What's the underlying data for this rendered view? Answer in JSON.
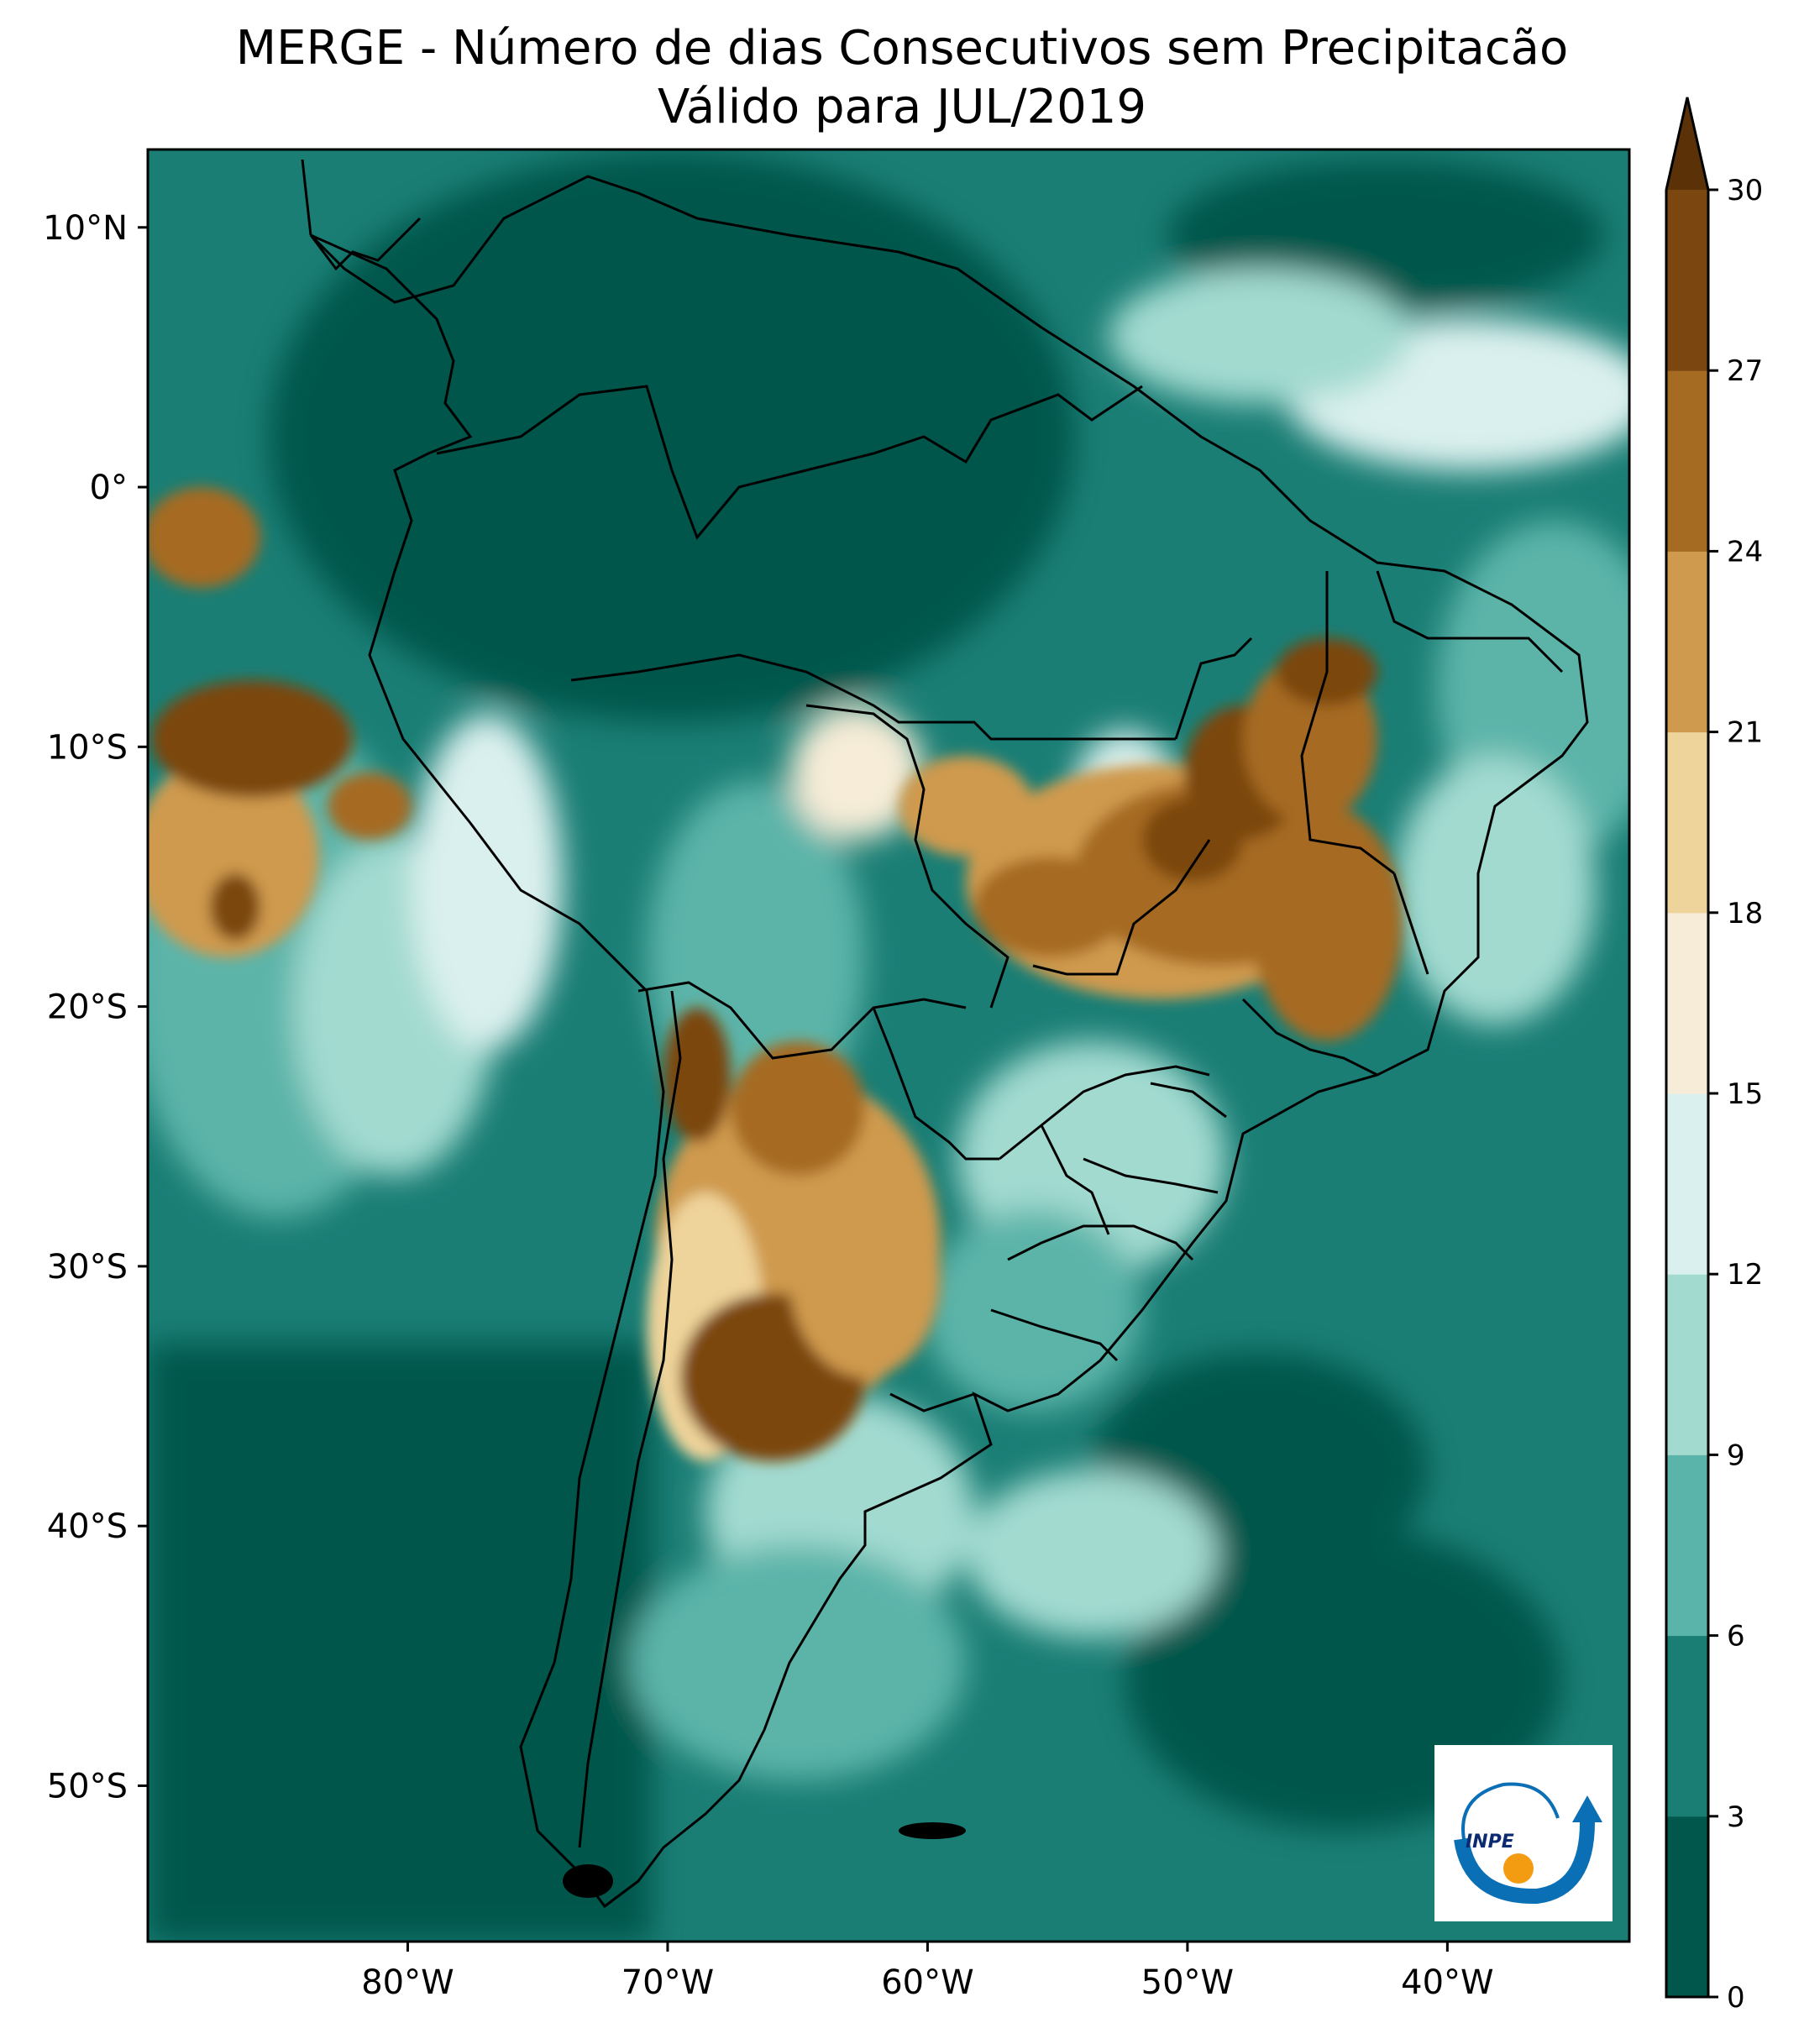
{
  "title": "MERGE - Número de dias Consecutivos sem Precipitacão",
  "subtitle": "Válido para JUL/2019",
  "axes": {
    "lat_labels": [
      "10°N",
      "0°",
      "10°S",
      "20°S",
      "30°S",
      "40°S",
      "50°S"
    ],
    "lon_labels": [
      "80°W",
      "70°W",
      "60°W",
      "50°W",
      "40°W"
    ],
    "lat_values": [
      10,
      0,
      -10,
      -20,
      -30,
      -40,
      -50
    ],
    "lon_values": [
      -80,
      -70,
      -60,
      -50,
      -40
    ],
    "lat_range": [
      -56,
      13
    ],
    "lon_range": [
      -90,
      -33
    ]
  },
  "colorbar": {
    "tick_labels": [
      "0",
      "3",
      "6",
      "9",
      "12",
      "15",
      "18",
      "21",
      "24",
      "27",
      "30"
    ],
    "levels": [
      0,
      3,
      6,
      9,
      12,
      15,
      18,
      21,
      24,
      27,
      30
    ],
    "colors": [
      "#01574c",
      "#1a7e75",
      "#5bb4a9",
      "#a2dad0",
      "#daf0ee",
      "#f6ecd7",
      "#eed39a",
      "#cf9a4e",
      "#a66b22",
      "#7b4610",
      "#5b3208"
    ],
    "extend": "max"
  },
  "logo": {
    "text": "INPE",
    "name": "inpe-logo"
  },
  "colors": {
    "ocean_base": "#1a7e75",
    "border_line": "#000000"
  }
}
